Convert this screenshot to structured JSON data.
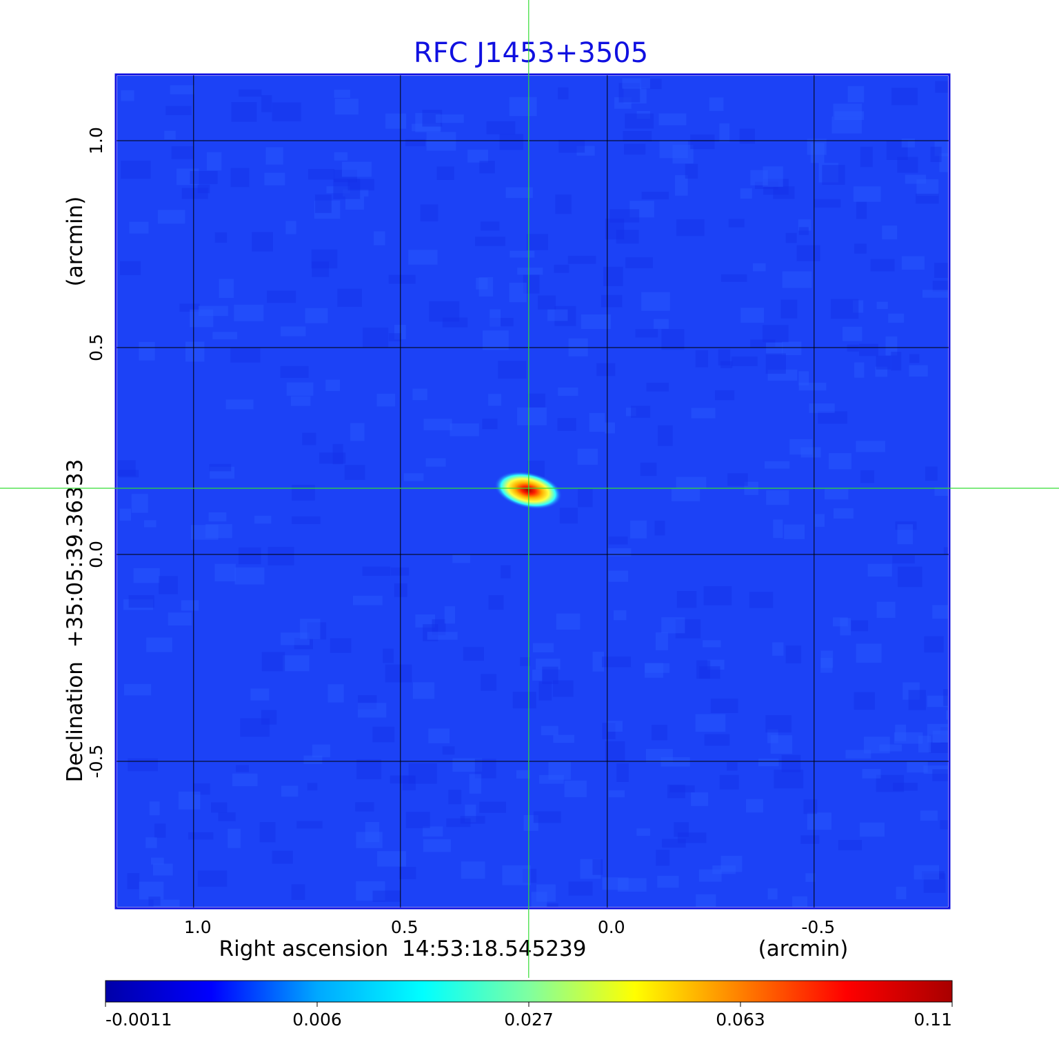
{
  "chart_data": {
    "type": "heatmap",
    "title": "RFC J1453+3505",
    "xlabel": "Right ascension  14:53:18.545239",
    "xunit": "(arcmin)",
    "ylabel": "Declination  +35:05:39.36333",
    "yunit": "(arcmin)",
    "xlim": [
      1.188,
      -0.827
    ],
    "ylim": [
      -0.855,
      1.16
    ],
    "xticks": [
      1.0,
      0.5,
      0.0,
      -0.5
    ],
    "xtick_labels": [
      "1.0",
      "0.5",
      "0.0",
      "-0.5"
    ],
    "yticks": [
      1.0,
      0.5,
      0.0,
      -0.5
    ],
    "ytick_labels": [
      "1.0",
      "0.5",
      "0.0",
      "-0.5"
    ],
    "grid": true,
    "colormap": "jet",
    "source": {
      "x": 0.19,
      "y": 0.16,
      "peak": 0.11
    },
    "crosshair": {
      "x": 0.19,
      "y": 0.16,
      "color": "#33dd33"
    },
    "background_color": "#1c42f6",
    "colorbar": {
      "tick_labels": [
        "-0.0011",
        "0.006",
        "0.027",
        "0.063",
        "0.11"
      ],
      "colors": [
        "#0000a8",
        "#0000ff",
        "#00a8ff",
        "#00ffff",
        "#7fffa0",
        "#ffff00",
        "#ff8000",
        "#ff0000",
        "#a80000"
      ]
    }
  }
}
